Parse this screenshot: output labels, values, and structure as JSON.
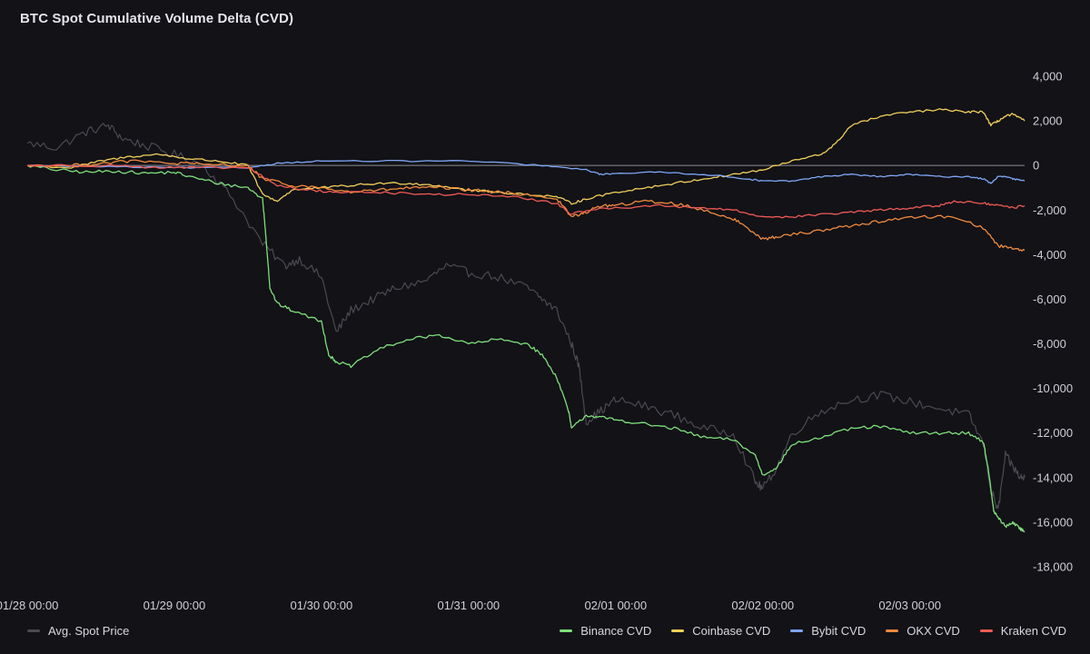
{
  "chart_data": {
    "type": "line",
    "title": "BTC Spot Cumulative Volume Delta (CVD)",
    "ylim": [
      -18000,
      4000
    ],
    "y_ticks": [
      {
        "value": 4000,
        "label": "4,000"
      },
      {
        "value": 2000,
        "label": "2,000"
      },
      {
        "value": 0,
        "label": "0"
      },
      {
        "value": -2000,
        "label": "-2,000"
      },
      {
        "value": -4000,
        "label": "-4,000"
      },
      {
        "value": -6000,
        "label": "-6,000"
      },
      {
        "value": -8000,
        "label": "-8,000"
      },
      {
        "value": -10000,
        "label": "-10,000"
      },
      {
        "value": -12000,
        "label": "-12,000"
      },
      {
        "value": -14000,
        "label": "-14,000"
      },
      {
        "value": -16000,
        "label": "-16,000"
      },
      {
        "value": -18000,
        "label": "-18,000"
      }
    ],
    "xlim": [
      0,
      6.78
    ],
    "x_ticks": [
      {
        "value": 0,
        "label": "01/28 00:00"
      },
      {
        "value": 1,
        "label": "01/29 00:00"
      },
      {
        "value": 2,
        "label": "01/30 00:00"
      },
      {
        "value": 3,
        "label": "01/31 00:00"
      },
      {
        "value": 4,
        "label": "02/01 00:00"
      },
      {
        "value": 5,
        "label": "02/02 00:00"
      },
      {
        "value": 6,
        "label": "02/03 00:00"
      }
    ],
    "grid": false,
    "zero_line": true,
    "legend_position": "bottom",
    "series": [
      {
        "name": "Avg. Spot Price",
        "color": "#4a4a50",
        "legend_side": "left",
        "jitter": 200,
        "x": [
          0,
          0.2,
          0.4,
          0.55,
          0.65,
          0.8,
          1.0,
          1.2,
          1.4,
          1.6,
          1.75,
          1.85,
          2.0,
          2.1,
          2.2,
          2.35,
          2.5,
          2.7,
          2.85,
          3.0,
          3.2,
          3.4,
          3.5,
          3.6,
          3.7,
          3.75,
          3.8,
          3.9,
          4.0,
          4.2,
          4.4,
          4.6,
          4.8,
          4.95,
          5.0,
          5.1,
          5.2,
          5.4,
          5.6,
          5.8,
          6.0,
          6.2,
          6.4,
          6.5,
          6.55,
          6.6,
          6.65,
          6.7,
          6.75,
          6.78
        ],
        "y": [
          1000,
          800,
          1500,
          1800,
          1200,
          900,
          500,
          0,
          -1500,
          -3500,
          -4500,
          -4200,
          -5000,
          -7500,
          -6500,
          -6000,
          -5500,
          -5200,
          -4500,
          -4800,
          -5000,
          -5500,
          -6000,
          -6500,
          -8000,
          -9000,
          -11500,
          -11000,
          -10500,
          -10800,
          -11200,
          -11800,
          -12000,
          -14200,
          -14500,
          -13500,
          -12000,
          -11000,
          -10500,
          -10300,
          -10600,
          -10900,
          -11200,
          -12500,
          -14500,
          -15500,
          -13000,
          -13500,
          -14000,
          -14000
        ]
      },
      {
        "name": "Binance CVD",
        "color": "#7ee07a",
        "legend_side": "right",
        "jitter": 70,
        "x": [
          0,
          0.2,
          0.4,
          0.6,
          0.8,
          1.0,
          1.1,
          1.3,
          1.5,
          1.6,
          1.62,
          1.65,
          1.7,
          1.8,
          2.0,
          2.05,
          2.1,
          2.2,
          2.4,
          2.6,
          2.8,
          3.0,
          3.2,
          3.4,
          3.5,
          3.6,
          3.68,
          3.7,
          3.8,
          3.9,
          4.0,
          4.2,
          4.4,
          4.6,
          4.8,
          4.95,
          5.0,
          5.1,
          5.2,
          5.4,
          5.6,
          5.8,
          6.0,
          6.2,
          6.4,
          6.5,
          6.53,
          6.57,
          6.6,
          6.65,
          6.7,
          6.75,
          6.78
        ],
        "y": [
          0,
          -200,
          -300,
          -250,
          -350,
          -300,
          -500,
          -800,
          -1000,
          -1500,
          -3000,
          -5500,
          -6200,
          -6500,
          -7000,
          -8500,
          -8800,
          -9000,
          -8200,
          -7800,
          -7600,
          -8000,
          -7800,
          -8000,
          -8500,
          -9500,
          -11000,
          -11800,
          -11200,
          -11300,
          -11400,
          -11600,
          -11800,
          -12200,
          -12300,
          -13000,
          -13900,
          -13500,
          -12500,
          -12200,
          -11800,
          -11700,
          -12000,
          -12000,
          -12000,
          -12400,
          -13500,
          -15500,
          -15800,
          -16200,
          -16000,
          -16300,
          -16400
        ]
      },
      {
        "name": "Coinbase CVD",
        "color": "#f0cf5a",
        "legend_side": "right",
        "jitter": 50,
        "x": [
          0,
          0.3,
          0.5,
          0.7,
          0.9,
          1.1,
          1.3,
          1.5,
          1.6,
          1.7,
          1.8,
          2.0,
          2.2,
          2.4,
          2.6,
          2.8,
          3.0,
          3.2,
          3.4,
          3.6,
          3.7,
          3.8,
          4.0,
          4.2,
          4.4,
          4.6,
          4.8,
          5.0,
          5.2,
          5.4,
          5.5,
          5.6,
          5.8,
          6.0,
          6.2,
          6.4,
          6.5,
          6.55,
          6.6,
          6.65,
          6.7,
          6.78
        ],
        "y": [
          0,
          -100,
          200,
          400,
          500,
          300,
          200,
          0,
          -1300,
          -1600,
          -1100,
          -1000,
          -900,
          -800,
          -800,
          -900,
          -1100,
          -1200,
          -1300,
          -1400,
          -1700,
          -1500,
          -1200,
          -1000,
          -800,
          -600,
          -400,
          -200,
          200,
          500,
          1000,
          1800,
          2200,
          2400,
          2500,
          2400,
          2400,
          1800,
          2000,
          2200,
          2300,
          2000
        ]
      },
      {
        "name": "Bybit CVD",
        "color": "#7fa6f5",
        "legend_side": "right",
        "jitter": 30,
        "x": [
          0,
          0.5,
          1.0,
          1.5,
          1.7,
          2.0,
          2.5,
          3.0,
          3.5,
          3.8,
          3.9,
          4.0,
          4.3,
          4.6,
          4.9,
          5.0,
          5.2,
          5.4,
          5.6,
          5.8,
          6.0,
          6.2,
          6.4,
          6.5,
          6.55,
          6.6,
          6.65,
          6.7,
          6.78
        ],
        "y": [
          0,
          -50,
          -100,
          -100,
          100,
          200,
          200,
          200,
          0,
          -200,
          -400,
          -350,
          -300,
          -400,
          -600,
          -700,
          -700,
          -500,
          -400,
          -500,
          -400,
          -500,
          -500,
          -600,
          -800,
          -500,
          -500,
          -600,
          -700
        ]
      },
      {
        "name": "OKX CVD",
        "color": "#f08a3c",
        "legend_side": "right",
        "jitter": 70,
        "x": [
          0,
          0.3,
          0.5,
          0.7,
          1.0,
          1.2,
          1.5,
          1.6,
          1.8,
          2.0,
          2.2,
          2.4,
          2.6,
          2.8,
          3.0,
          3.2,
          3.4,
          3.6,
          3.7,
          3.8,
          3.9,
          4.0,
          4.2,
          4.4,
          4.6,
          4.8,
          4.9,
          5.0,
          5.1,
          5.3,
          5.5,
          5.7,
          5.9,
          6.1,
          6.3,
          6.5,
          6.6,
          6.7,
          6.78
        ],
        "y": [
          0,
          0,
          100,
          200,
          100,
          50,
          0,
          -600,
          -900,
          -1000,
          -1200,
          -1100,
          -1000,
          -1000,
          -1100,
          -1200,
          -1300,
          -1500,
          -2300,
          -2100,
          -1800,
          -1800,
          -1600,
          -1700,
          -2000,
          -2400,
          -2800,
          -3300,
          -3200,
          -3000,
          -2800,
          -2600,
          -2400,
          -2300,
          -2300,
          -2800,
          -3600,
          -3700,
          -3800
        ]
      },
      {
        "name": "Kraken CVD",
        "color": "#ef5a55",
        "legend_side": "right",
        "jitter": 50,
        "x": [
          0,
          0.3,
          0.6,
          0.9,
          1.2,
          1.5,
          1.7,
          1.9,
          2.1,
          2.4,
          2.7,
          3.0,
          3.3,
          3.6,
          3.7,
          3.8,
          4.0,
          4.3,
          4.6,
          4.8,
          5.0,
          5.2,
          5.4,
          5.6,
          5.8,
          6.0,
          6.2,
          6.3,
          6.5,
          6.6,
          6.7,
          6.78
        ],
        "y": [
          0,
          0,
          0,
          -100,
          -100,
          -100,
          -900,
          -1100,
          -1200,
          -1200,
          -1300,
          -1300,
          -1400,
          -1700,
          -2200,
          -2000,
          -1900,
          -1800,
          -1900,
          -2000,
          -2300,
          -2300,
          -2200,
          -2100,
          -2000,
          -1900,
          -1800,
          -1600,
          -1700,
          -1800,
          -1900,
          -1800
        ]
      }
    ]
  }
}
